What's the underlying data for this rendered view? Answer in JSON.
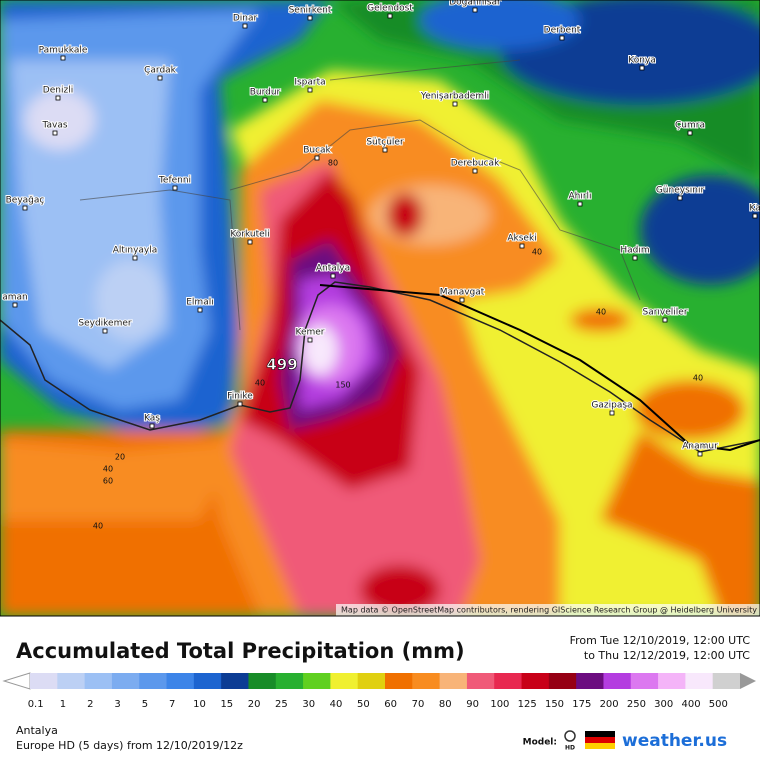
{
  "map": {
    "cities": [
      "Dinar",
      "Senirkent",
      "Gelendost",
      "Doğanhisar",
      "Derbent",
      "Konya",
      "Pamukkale",
      "Denizli",
      "Çardak",
      "Burdur",
      "Isparta",
      "Yenişarbademli",
      "Tavas",
      "Çumra",
      "Bucak",
      "Sütçüler",
      "Derebucak",
      "Tefenni",
      "Güneysınır",
      "Beyağaç",
      "Ahırlı",
      "Ka",
      "Korkuteli",
      "Akseki",
      "Altınyayla",
      "Hadım",
      "Antalya",
      "Manavgat",
      "Elmalı",
      "Sarıveliler",
      "aman",
      "Seydikemer",
      "Kemer",
      "Finike",
      "Gazipaşa",
      "Kaş",
      "Anamur"
    ],
    "contour_labels": [
      80,
      40,
      40,
      40,
      40,
      150,
      20,
      40,
      60,
      40
    ],
    "max_label": 499,
    "attribution": "Map data © OpenStreetMap contributors, rendering GIScience Research Group @ Heidelberg University"
  },
  "legend": {
    "title": "Accumulated Total Precipitation (mm)",
    "period_from": "From Tue 12/10/2019, 12:00 UTC",
    "period_to": "to Thu 12/12/2019, 12:00 UTC",
    "levels": [
      0.1,
      1,
      2,
      3,
      5,
      7,
      10,
      15,
      20,
      25,
      30,
      40,
      50,
      60,
      70,
      80,
      90,
      100,
      125,
      150,
      175,
      200,
      250,
      300,
      400,
      500
    ],
    "colors": [
      "#dcdcf4",
      "#bcd0f4",
      "#9cc0f4",
      "#7cacf0",
      "#5c98ec",
      "#3c84e8",
      "#1c64d0",
      "#0c3c94",
      "#188c28",
      "#28b030",
      "#60d020",
      "#f0f030",
      "#e0d010",
      "#f07000",
      "#f88c20",
      "#f8b478",
      "#f05a78",
      "#e82850",
      "#c80018",
      "#960014",
      "#6c0c80",
      "#b43ce0",
      "#dc78f0",
      "#f4b4f8",
      "#f8e8fc",
      "#d0d0d0"
    ]
  },
  "footer": {
    "location": "Antalya",
    "model_run": "Europe HD (5 days) from 12/10/2019/12z",
    "model_label": "Model:",
    "model_badge": "HD",
    "brand": "weather.us"
  }
}
